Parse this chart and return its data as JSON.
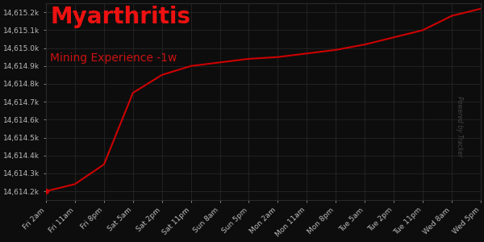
{
  "title": "Myarthritis",
  "subtitle": "Mining Experience -1w",
  "background_color": "#0d0d0d",
  "plot_bg_color": "#0d0d0d",
  "grid_color": "#2a2a2a",
  "line_color": "#cc0000",
  "title_color": "#ee1111",
  "subtitle_color": "#cc1111",
  "tick_label_color": "#bbbbbb",
  "tick_labels": [
    "Fri 2am",
    "Fri 11am",
    "Fri 8pm",
    "Sat 5am",
    "Sat 2pm",
    "Sat 11pm",
    "Sun 8am",
    "Sun 5pm",
    "Mon 2am",
    "Mon 11am",
    "Mon 8pm",
    "Tue 5am",
    "Tue 2pm",
    "Tue 11pm",
    "Wed 8am",
    "Wed 5pm"
  ],
  "x_values": [
    0,
    1,
    2,
    3,
    4,
    5,
    6,
    7,
    8,
    9,
    10,
    11,
    12,
    13,
    14,
    15
  ],
  "y_values": [
    14614.2,
    14614.24,
    14614.35,
    14614.75,
    14614.85,
    14614.9,
    14614.92,
    14614.94,
    14614.95,
    14614.97,
    14614.99,
    14615.02,
    14615.06,
    14615.1,
    14615.18,
    14615.22
  ],
  "ylim": [
    14614.15,
    14615.25
  ],
  "ytick_values": [
    14614.2,
    14614.3,
    14614.4,
    14614.5,
    14614.6,
    14614.7,
    14614.8,
    14614.9,
    14615.0,
    14615.1,
    14615.2
  ],
  "line_width": 1.5,
  "marker_at": [
    0
  ],
  "marker_color": "#cc0000",
  "marker_size": 4,
  "title_fontsize": 20,
  "subtitle_fontsize": 10,
  "tick_fontsize": 6.5,
  "ylabel_pad": 2
}
